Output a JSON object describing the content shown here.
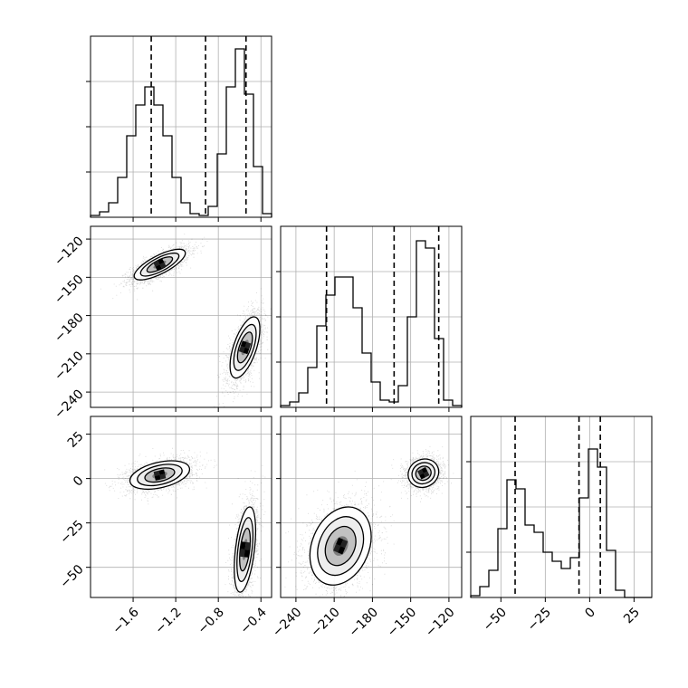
{
  "chart_data": {
    "type": "corner",
    "parameters": [
      {
        "range": [
          -2.0,
          -0.3
        ],
        "ticks": [
          -1.6,
          -1.2,
          -0.8,
          -0.4
        ],
        "tick_labels": [
          "−1.6",
          "−1.2",
          "−0.8",
          "−0.4"
        ]
      },
      {
        "range": [
          -252,
          -110
        ],
        "ticks": [
          -120,
          -150,
          -180,
          -210,
          -240
        ],
        "tick_labels": [
          "−120",
          "−150",
          "−180",
          "−210",
          "−240"
        ],
        "x_ticks": [
          -240,
          -210,
          -180,
          -150,
          -120
        ],
        "x_tick_labels": [
          "−240",
          "−210",
          "−180",
          "−150",
          "−120"
        ]
      },
      {
        "range": [
          -67,
          35
        ],
        "ticks": [
          25,
          0,
          -25,
          -50
        ],
        "tick_labels": [
          "25",
          "0",
          "−25",
          "−50"
        ],
        "x_ticks": [
          -50,
          -25,
          0,
          25
        ],
        "x_tick_labels": [
          "−50",
          "−25",
          "0",
          "25"
        ]
      }
    ],
    "histograms": [
      {
        "param": 0,
        "edges_start": -2.0,
        "bin_width": 0.085,
        "counts": [
          1,
          3,
          8,
          22,
          45,
          62,
          72,
          62,
          45,
          22,
          8,
          2,
          1,
          6,
          35,
          72,
          93,
          68,
          28,
          2
        ],
        "ymax": 100,
        "quantiles": [
          -1.43,
          -0.92,
          -0.54
        ]
      },
      {
        "param": 1,
        "edges_start": -252,
        "bin_width": 7.1,
        "counts": [
          1,
          3,
          8,
          22,
          45,
          62,
          72,
          72,
          55,
          30,
          14,
          4,
          3,
          12,
          50,
          92,
          88,
          38,
          4,
          1
        ],
        "ymax": 100,
        "quantiles": [
          -216,
          -163,
          -128
        ]
      },
      {
        "param": 2,
        "edges_start": -67,
        "bin_width": 5.1,
        "counts": [
          1,
          6,
          15,
          38,
          65,
          60,
          40,
          36,
          25,
          20,
          16,
          22,
          55,
          82,
          72,
          26,
          4,
          0,
          0,
          0
        ],
        "ymax": 100,
        "quantiles": [
          -42,
          -6,
          6
        ]
      }
    ],
    "hist2d": [
      {
        "params": [
          0,
          1
        ],
        "modes": [
          {
            "center": [
              -1.35,
              -140
            ],
            "sd": [
              0.12,
              6.0
            ],
            "rho": 0.75,
            "n": 2200
          },
          {
            "center": [
              -0.55,
              -205
            ],
            "sd": [
              0.07,
              12.0
            ],
            "rho": 0.6,
            "n": 2200
          }
        ]
      },
      {
        "params": [
          0,
          2
        ],
        "modes": [
          {
            "center": [
              -1.35,
              2
            ],
            "sd": [
              0.14,
              4.0
            ],
            "rho": 0.4,
            "n": 2200
          },
          {
            "center": [
              -0.55,
              -40
            ],
            "sd": [
              0.05,
              12.0
            ],
            "rho": 0.45,
            "n": 2200
          }
        ]
      },
      {
        "params": [
          1,
          2
        ],
        "modes": [
          {
            "center": [
              -205,
              -38
            ],
            "sd": [
              12.0,
              11.0
            ],
            "rho": 0.25,
            "n": 2200
          },
          {
            "center": [
              -140,
              3
            ],
            "sd": [
              6.0,
              4.0
            ],
            "rho": 0.1,
            "n": 2200
          }
        ]
      }
    ],
    "grid": true
  }
}
